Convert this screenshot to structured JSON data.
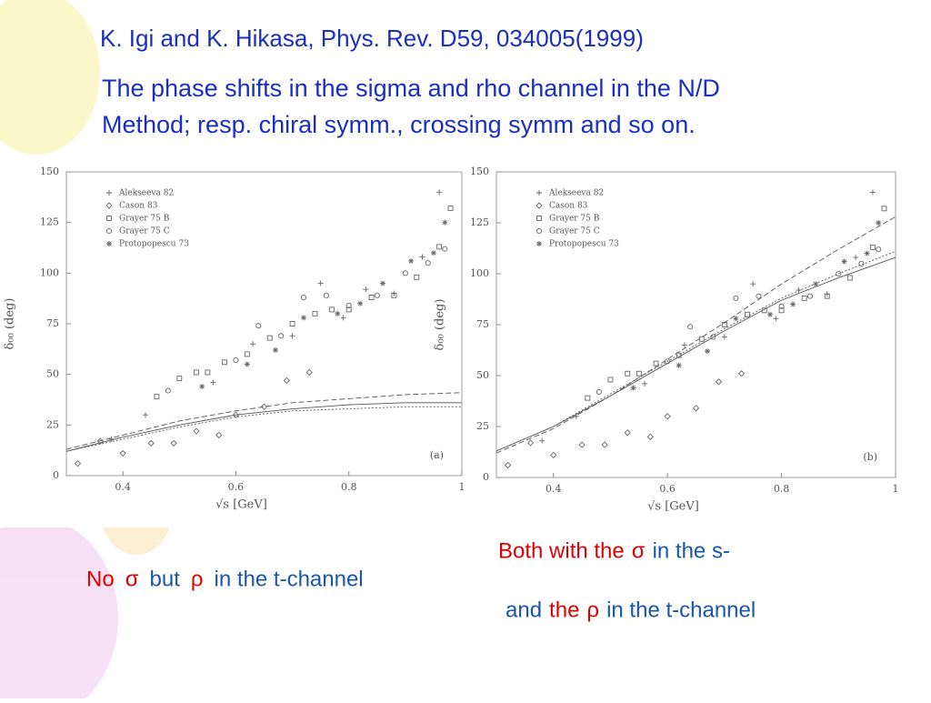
{
  "slide": {
    "citation": "K. Igi and K. Hikasa, Phys. Rev. D59, 034005(1999)",
    "description": [
      "The phase shifts in the sigma and rho channel in the N/D",
      "Method; resp. chiral symm., crossing symm and so on."
    ],
    "caption_left": [
      {
        "text": "No",
        "color": "#e00000"
      },
      {
        "text": "σ",
        "color": "#e00000"
      },
      {
        "text": "but",
        "color": "#1a56a8"
      },
      {
        "text": "ρ",
        "color": "#e00000"
      },
      {
        "text": "in the t-channel",
        "color": "#1a56a8"
      }
    ],
    "caption_right": [
      [
        {
          "text": "Both with the",
          "color": "#e00000"
        },
        {
          "text": "σ",
          "color": "#e00000"
        },
        {
          "text": "in the s-",
          "color": "#1a56a8"
        }
      ],
      [
        {
          "text": "and",
          "color": "#1a56a8"
        },
        {
          "text": "the",
          "color": "#e00000"
        },
        {
          "text": "ρ",
          "color": "#e00000"
        },
        {
          "text": "in the t-channel",
          "color": "#1a56a8"
        }
      ]
    ]
  },
  "chart_data": [
    {
      "type": "scatter",
      "panel_label": "(a)",
      "xlabel": "√s [GeV]",
      "ylabel": "δ₀₀ (deg)",
      "xlim": [
        0.3,
        1
      ],
      "ylim": [
        0,
        150
      ],
      "xticks": [
        0.4,
        0.6,
        0.8,
        1
      ],
      "yticks": [
        0,
        25,
        50,
        75,
        100,
        125,
        150
      ],
      "series": [
        {
          "name": "Alekseeva 82",
          "marker": "plus",
          "color": "#666",
          "x": [
            0.38,
            0.44,
            0.56,
            0.63,
            0.7,
            0.75,
            0.79,
            0.83,
            0.88,
            0.93,
            0.96
          ],
          "values": [
            18,
            30,
            46,
            65,
            69,
            95,
            78,
            92,
            90,
            108,
            140
          ]
        },
        {
          "name": "Cason 83",
          "marker": "diamond",
          "color": "#666",
          "x": [
            0.32,
            0.36,
            0.4,
            0.45,
            0.49,
            0.53,
            0.57,
            0.6,
            0.65,
            0.69,
            0.73
          ],
          "values": [
            6,
            17,
            11,
            16,
            16,
            22,
            20,
            30,
            34,
            47,
            51
          ]
        },
        {
          "name": "Grayer 75 B",
          "marker": "square",
          "color": "#666",
          "x": [
            0.46,
            0.5,
            0.53,
            0.55,
            0.58,
            0.62,
            0.66,
            0.7,
            0.74,
            0.77,
            0.8,
            0.84,
            0.88,
            0.92,
            0.96,
            0.98
          ],
          "values": [
            39,
            48,
            51,
            51,
            56,
            60,
            68,
            75,
            80,
            82,
            82,
            88,
            89,
            98,
            113,
            132
          ]
        },
        {
          "name": "Grayer 75 C",
          "marker": "circle",
          "color": "#666",
          "x": [
            0.48,
            0.6,
            0.64,
            0.68,
            0.72,
            0.76,
            0.8,
            0.85,
            0.9,
            0.94,
            0.97
          ],
          "values": [
            42,
            57,
            74,
            69,
            88,
            89,
            84,
            89,
            100,
            105,
            112
          ]
        },
        {
          "name": "Protopopescu 73",
          "marker": "asterisk",
          "color": "#666",
          "x": [
            0.54,
            0.62,
            0.67,
            0.72,
            0.78,
            0.82,
            0.86,
            0.91,
            0.95,
            0.97
          ],
          "values": [
            44,
            55,
            62,
            78,
            80,
            85,
            95,
            106,
            110,
            125
          ]
        }
      ],
      "curves": [
        {
          "dash": "none",
          "x": [
            0.3,
            0.4,
            0.5,
            0.6,
            0.7,
            0.8,
            0.9,
            1
          ],
          "values": [
            12,
            19,
            25,
            30,
            33,
            35,
            36,
            36
          ]
        },
        {
          "dash": "6 3",
          "x": [
            0.3,
            0.4,
            0.5,
            0.6,
            0.7,
            0.8,
            0.9,
            1
          ],
          "values": [
            13,
            20,
            27,
            32,
            36,
            38,
            40,
            41
          ]
        },
        {
          "dash": "2 2",
          "x": [
            0.3,
            0.4,
            0.5,
            0.6,
            0.7,
            0.8,
            0.9,
            1
          ],
          "values": [
            12,
            18,
            24,
            29,
            32,
            33,
            34,
            34
          ]
        }
      ]
    },
    {
      "type": "scatter",
      "panel_label": "(b)",
      "xlabel": "√s [GeV]",
      "ylabel": "δ₀₀ (deg)",
      "xlim": [
        0.3,
        1
      ],
      "ylim": [
        0,
        150
      ],
      "xticks": [
        0.4,
        0.6,
        0.8,
        1
      ],
      "yticks": [
        0,
        25,
        50,
        75,
        100,
        125,
        150
      ],
      "series": [
        {
          "name": "Alekseeva 82",
          "marker": "plus",
          "color": "#666",
          "x": [
            0.38,
            0.44,
            0.56,
            0.63,
            0.7,
            0.75,
            0.79,
            0.83,
            0.88,
            0.93,
            0.96
          ],
          "values": [
            18,
            30,
            46,
            65,
            69,
            95,
            78,
            92,
            90,
            108,
            140
          ]
        },
        {
          "name": "Cason 83",
          "marker": "diamond",
          "color": "#666",
          "x": [
            0.32,
            0.36,
            0.4,
            0.45,
            0.49,
            0.53,
            0.57,
            0.6,
            0.65,
            0.69,
            0.73
          ],
          "values": [
            6,
            17,
            11,
            16,
            16,
            22,
            20,
            30,
            34,
            47,
            51
          ]
        },
        {
          "name": "Grayer 75 B",
          "marker": "square",
          "color": "#666",
          "x": [
            0.46,
            0.5,
            0.53,
            0.55,
            0.58,
            0.62,
            0.66,
            0.7,
            0.74,
            0.77,
            0.8,
            0.84,
            0.88,
            0.92,
            0.96,
            0.98
          ],
          "values": [
            39,
            48,
            51,
            51,
            56,
            60,
            68,
            75,
            80,
            82,
            82,
            88,
            89,
            98,
            113,
            132
          ]
        },
        {
          "name": "Grayer 75 C",
          "marker": "circle",
          "color": "#666",
          "x": [
            0.48,
            0.6,
            0.64,
            0.68,
            0.72,
            0.76,
            0.8,
            0.85,
            0.9,
            0.94,
            0.97
          ],
          "values": [
            42,
            57,
            74,
            69,
            88,
            89,
            84,
            89,
            100,
            105,
            112
          ]
        },
        {
          "name": "Protopopescu 73",
          "marker": "asterisk",
          "color": "#666",
          "x": [
            0.54,
            0.62,
            0.67,
            0.72,
            0.78,
            0.82,
            0.86,
            0.91,
            0.95,
            0.97
          ],
          "values": [
            44,
            55,
            62,
            78,
            80,
            85,
            95,
            106,
            110,
            125
          ]
        }
      ],
      "curves": [
        {
          "dash": "none",
          "x": [
            0.3,
            0.4,
            0.5,
            0.6,
            0.7,
            0.8,
            0.9,
            1
          ],
          "values": [
            13,
            25,
            40,
            56,
            72,
            87,
            98,
            108
          ]
        },
        {
          "dash": "6 3",
          "x": [
            0.3,
            0.4,
            0.5,
            0.6,
            0.7,
            0.8,
            0.9,
            1
          ],
          "values": [
            12,
            24,
            40,
            58,
            76,
            95,
            112,
            128
          ]
        },
        {
          "dash": "2 2",
          "x": [
            0.3,
            0.4,
            0.5,
            0.6,
            0.7,
            0.8,
            0.9,
            1
          ],
          "values": [
            13,
            25,
            41,
            57,
            73,
            88,
            100,
            111
          ]
        }
      ]
    }
  ]
}
